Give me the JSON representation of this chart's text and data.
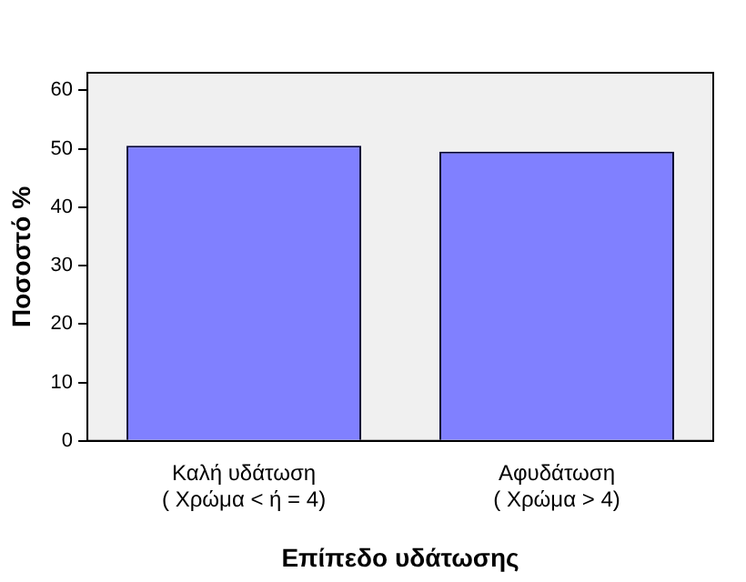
{
  "chart_data": {
    "type": "bar",
    "xlabel": "Επίπεδο υδάτωσης",
    "ylabel": "Ποσοστό %",
    "categories": [
      "Καλή υδάτωση\n( Χρώμα < ή = 4)",
      "Αφυδάτωση\n( Χρώμα > 4)"
    ],
    "values": [
      50.5,
      49.5
    ],
    "color": "#8080ff",
    "ylim": [
      0,
      63
    ],
    "yticks": [
      0,
      10,
      20,
      30,
      40,
      50,
      60
    ],
    "grid": false,
    "legend": false
  }
}
